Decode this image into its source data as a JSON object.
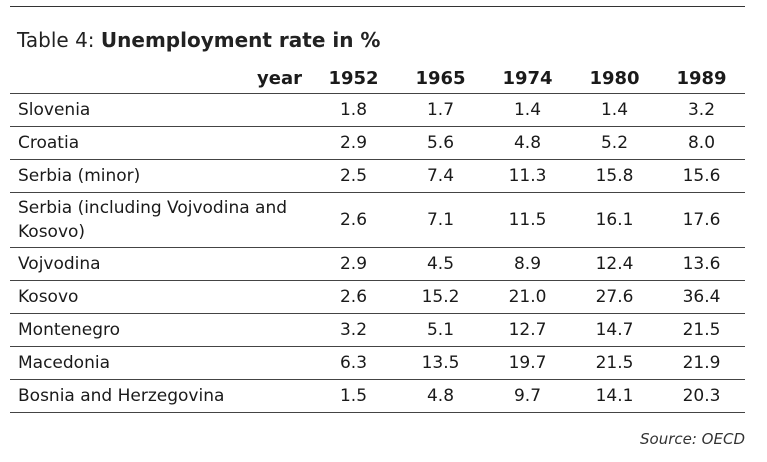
{
  "title": {
    "prefix": "Table 4: ",
    "main": "Unemployment rate in %"
  },
  "table": {
    "year_label": "year",
    "years": [
      "1952",
      "1965",
      "1974",
      "1980",
      "1989"
    ],
    "rows": [
      {
        "region": "Slovenia",
        "values": [
          "1.8",
          "1.7",
          "1.4",
          "1.4",
          "3.2"
        ]
      },
      {
        "region": "Croatia",
        "values": [
          "2.9",
          "5.6",
          "4.8",
          "5.2",
          "8.0"
        ]
      },
      {
        "region": "Serbia (minor)",
        "values": [
          "2.5",
          "7.4",
          "11.3",
          "15.8",
          "15.6"
        ]
      },
      {
        "region": "Serbia (including Vojvodina and Kosovo)",
        "values": [
          "2.6",
          "7.1",
          "11.5",
          "16.1",
          "17.6"
        ]
      },
      {
        "region": "Vojvodina",
        "values": [
          "2.9",
          "4.5",
          "8.9",
          "12.4",
          "13.6"
        ]
      },
      {
        "region": "Kosovo",
        "values": [
          "2.6",
          "15.2",
          "21.0",
          "27.6",
          "36.4"
        ]
      },
      {
        "region": "Montenegro",
        "values": [
          "3.2",
          "5.1",
          "12.7",
          "14.7",
          "21.5"
        ]
      },
      {
        "region": "Macedonia",
        "values": [
          "6.3",
          "13.5",
          "19.7",
          "21.5",
          "21.9"
        ]
      },
      {
        "region": "Bosnia and Herzegovina",
        "values": [
          "1.5",
          "4.8",
          "9.7",
          "14.1",
          "20.3"
        ]
      }
    ]
  },
  "source": "Source: OECD"
}
